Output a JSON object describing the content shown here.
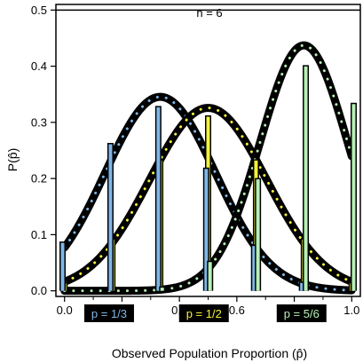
{
  "chart_data": {
    "type": "line",
    "panel_label": "n = 6",
    "xlabel": "Observed Population Proportion (p̂)",
    "ylabel": "P(p̂)",
    "xlim": [
      -0.03,
      1.03
    ],
    "ylim": [
      -0.01,
      0.51
    ],
    "x_ticks": [
      0.0,
      0.2,
      0.4,
      0.6,
      0.8,
      1.0
    ],
    "x_tick_labels": [
      "0.0",
      "0.2",
      "0.4",
      "0.6",
      "0.8",
      "1.0"
    ],
    "y_ticks": [
      0.0,
      0.1,
      0.2,
      0.3,
      0.4,
      0.5
    ],
    "y_tick_labels": [
      "0.0",
      "0.1",
      "0.2",
      "0.3",
      "0.4",
      "0.5"
    ],
    "x_minor_ticks": [
      0.1,
      0.3,
      0.5,
      0.7,
      0.9
    ],
    "grid": false,
    "strip_y": 0.5,
    "legend_y": -0.04,
    "series": [
      {
        "name": "p = 1/3",
        "color": "#7fb6e6",
        "legend_x": 0.075,
        "x": [
          0.0,
          0.1667,
          0.3333,
          0.5,
          0.6667,
          0.8333,
          1.0
        ],
        "y": [
          0.0878,
          0.2634,
          0.3292,
          0.2195,
          0.0823,
          0.0165,
          0.0014
        ],
        "curve_mean": 0.3333,
        "curve_sd": 0.1925
      },
      {
        "name": "p = 1/2",
        "color": "#f2f23a",
        "legend_x": 0.405,
        "x": [
          0.0,
          0.1667,
          0.3333,
          0.5,
          0.6667,
          0.8333,
          1.0
        ],
        "y": [
          0.0156,
          0.0938,
          0.2344,
          0.3125,
          0.2344,
          0.0938,
          0.0156
        ],
        "curve_mean": 0.5,
        "curve_sd": 0.2041
      },
      {
        "name": "p = 5/6",
        "color": "#b6f0b6",
        "legend_x": 0.745,
        "x": [
          0.0,
          0.1667,
          0.3333,
          0.5,
          0.6667,
          0.8333,
          1.0
        ],
        "y": [
          0.0,
          0.0006,
          0.008,
          0.0536,
          0.2009,
          0.4019,
          0.3349
        ],
        "curve_mean": 0.8333,
        "curve_sd": 0.1521
      }
    ]
  }
}
